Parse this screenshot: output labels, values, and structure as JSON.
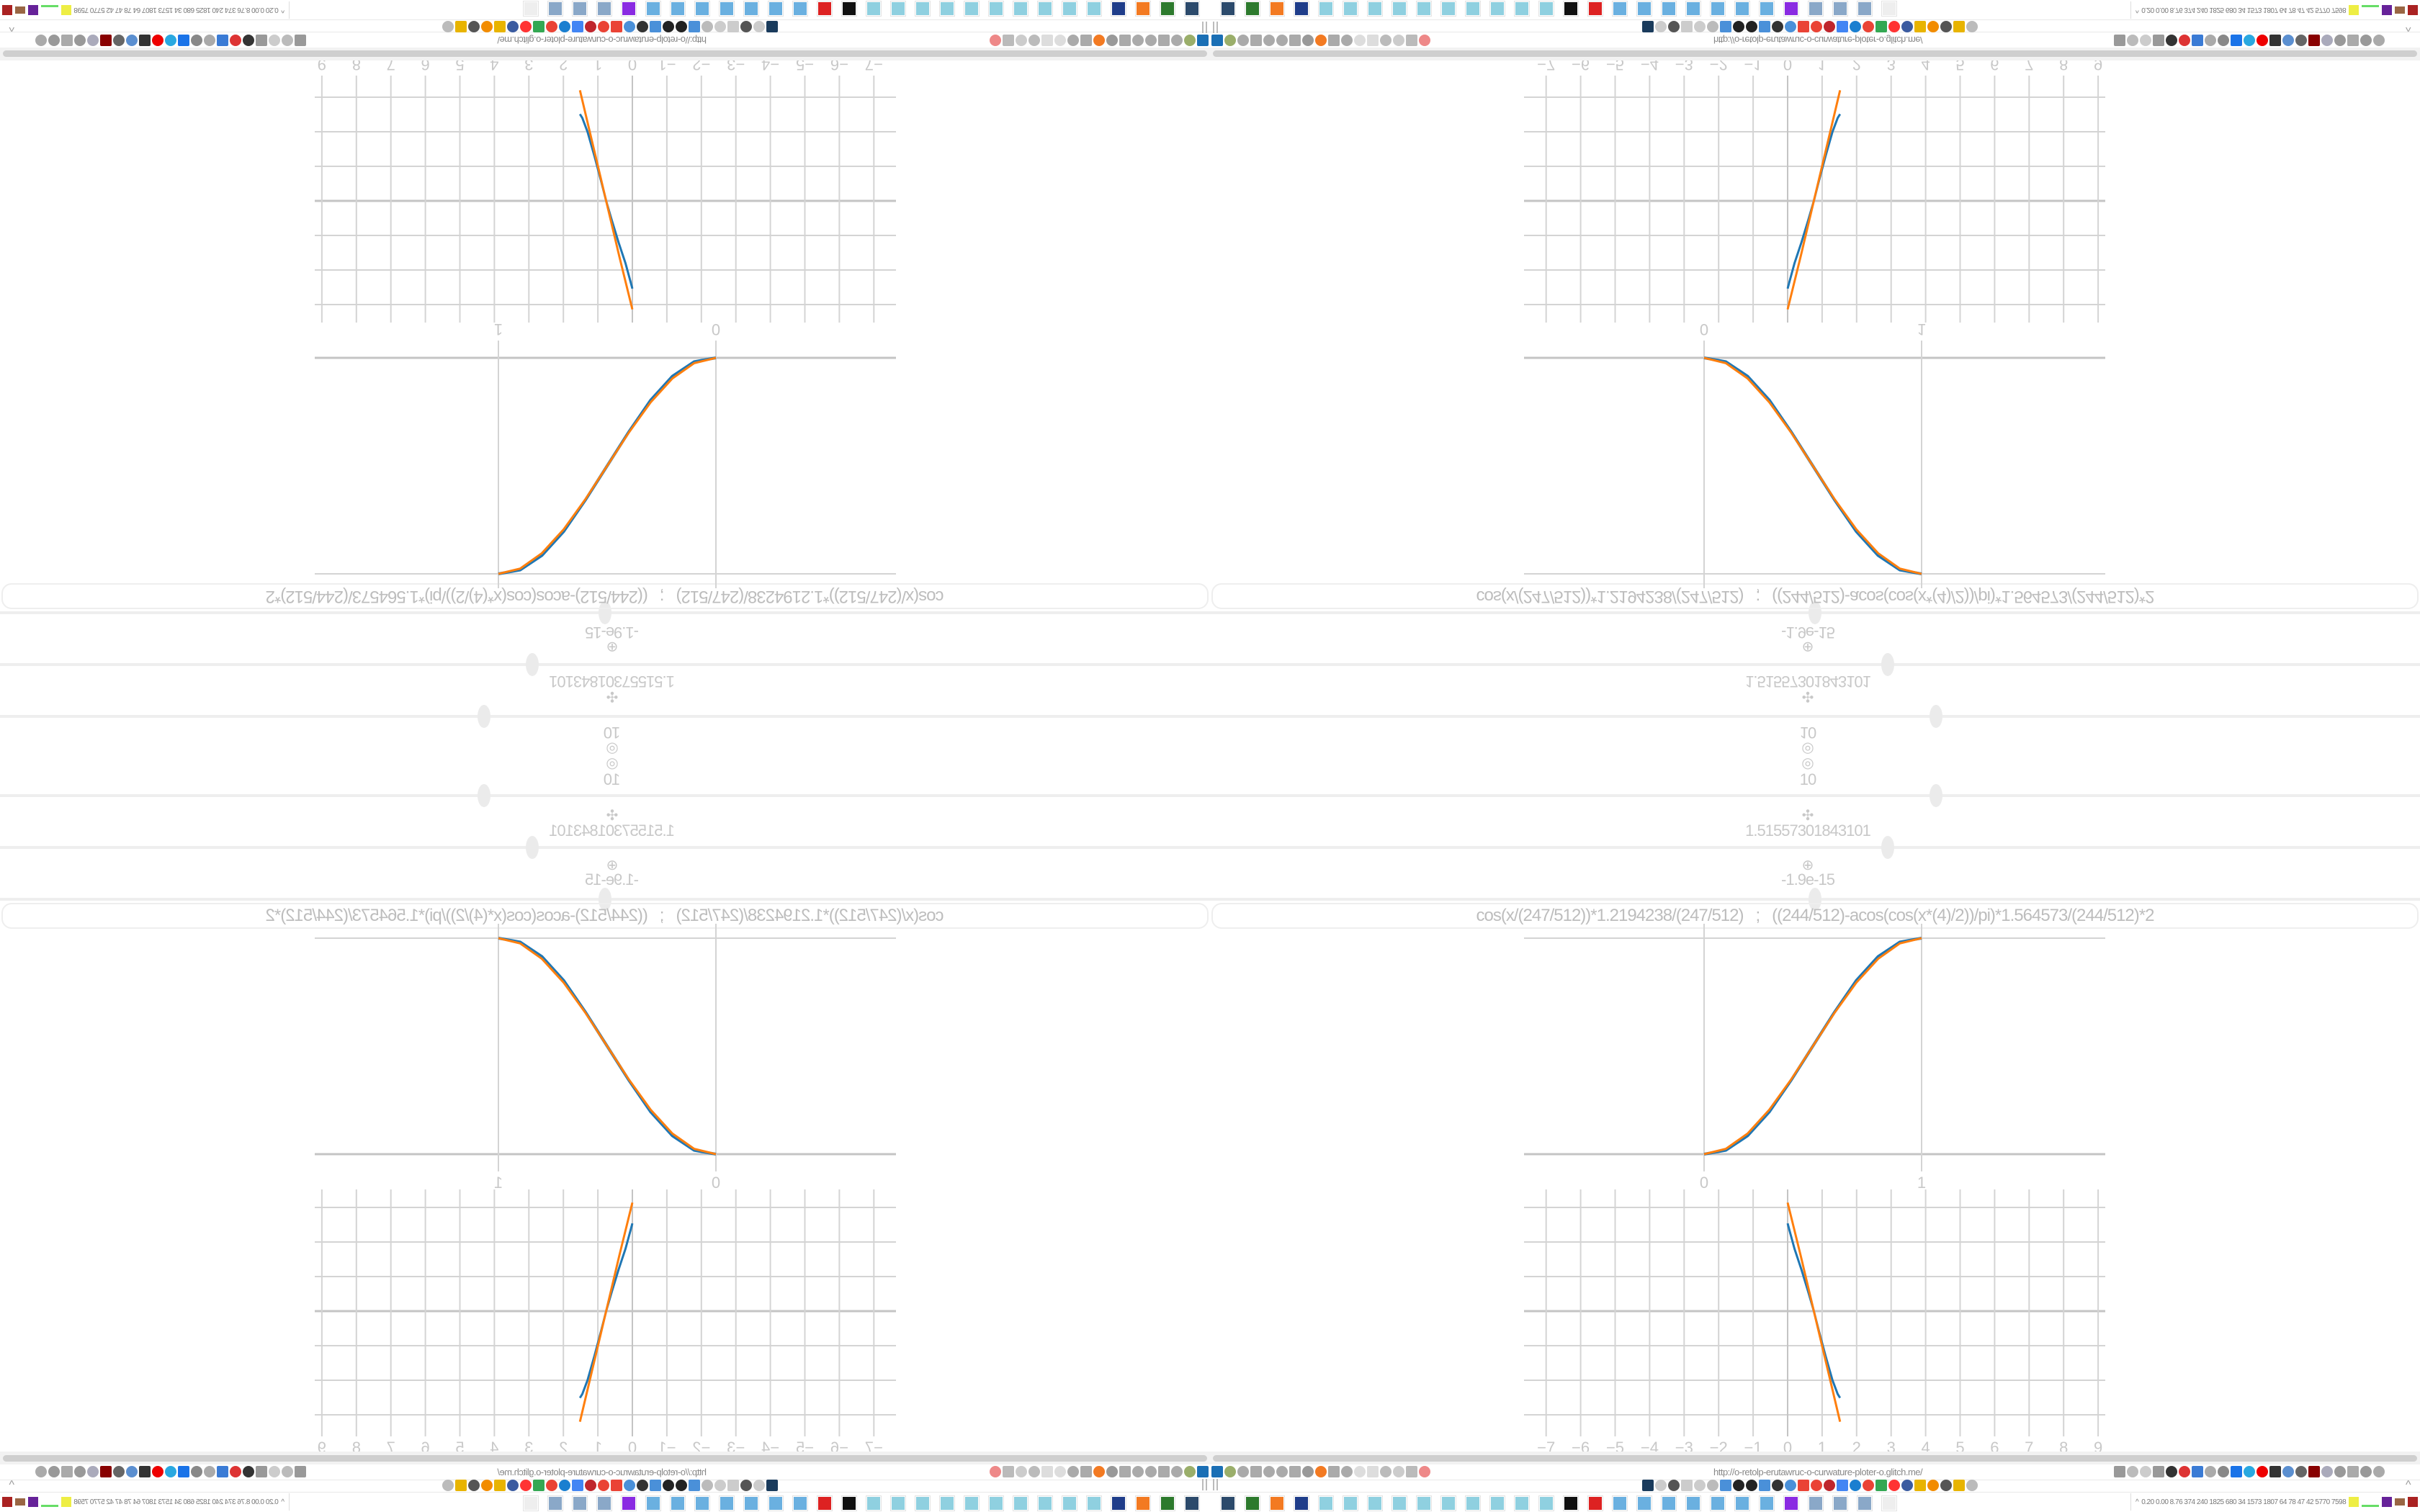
{
  "sliders": [
    {
      "value_text": "10",
      "glyph": "◎",
      "fraction": 0.6
    },
    {
      "glyph": "✣",
      "value_text": "1.51557301843101",
      "fraction": 0.56
    },
    {
      "glyph": "⊕",
      "value_text": "-1.9e-15",
      "fraction": 0.5
    }
  ],
  "formula": "cos(x/(247/512))*1.2194238/(247/512)   ;   ((244/512)-acos(cos(x*(4)/2))/pi)*1.564573/(244/512)*2",
  "colors": {
    "blue": "#1f77b4",
    "orange": "#ff7f0e",
    "grid": "#d0d0d0",
    "text": "#c8c8c8"
  },
  "chart_data": [
    {
      "type": "line",
      "x_ticks": [
        "0",
        "1"
      ],
      "xlim": [
        0,
        1
      ],
      "ylim": [
        0,
        1
      ],
      "grid": true,
      "series": [
        {
          "color": "#1f77b4",
          "x": [
            0,
            0.1,
            0.2,
            0.3,
            0.4,
            0.5,
            0.6,
            0.7,
            0.8,
            0.9,
            1
          ],
          "y": [
            0,
            0.018,
            0.085,
            0.196,
            0.342,
            0.5,
            0.658,
            0.804,
            0.915,
            0.982,
            1
          ]
        },
        {
          "color": "#ff7f0e",
          "x": [
            0,
            0.1,
            0.2,
            0.3,
            0.4,
            0.5,
            0.6,
            0.7,
            0.8,
            0.9,
            1
          ],
          "y": [
            0,
            0.0245,
            0.0955,
            0.2061,
            0.3455,
            0.5,
            0.6545,
            0.7939,
            0.9045,
            0.9755,
            1
          ]
        }
      ]
    },
    {
      "type": "line",
      "x_ticks": [
        "−7",
        "−6",
        "−5",
        "−4",
        "−3",
        "−2",
        "−1",
        "0",
        "1",
        "2",
        "3",
        "4",
        "5",
        "6",
        "7",
        "8",
        "9"
      ],
      "xlim": [
        -7,
        9
      ],
      "ylim": [
        -3.6,
        3.5
      ],
      "grid": true,
      "series": [
        {
          "color": "#1f77b4",
          "x": [
            0,
            0.05,
            0.2,
            0.4,
            0.6,
            0.76,
            0.9,
            1.1,
            1.3,
            1.45,
            1.52
          ],
          "y": [
            2.54,
            2.35,
            1.8,
            1.2,
            0.55,
            0,
            -0.55,
            -1.3,
            -2.0,
            -2.4,
            -2.51
          ]
        },
        {
          "color": "#ff7f0e",
          "x": [
            0,
            0.38,
            0.76,
            1.14,
            1.52
          ],
          "y": [
            3.14,
            1.6,
            0,
            -1.6,
            -3.2
          ]
        }
      ]
    }
  ],
  "browser": {
    "url": "http://o-retolp-erutawruc-o-curwature-ploter-o.glitch.me/",
    "toolbar_left_icons": [
      {
        "name": "filter-icon",
        "color": "#1a6fb5"
      },
      {
        "name": "power-icon",
        "color": "#9aae6a"
      },
      {
        "name": "globe-icon",
        "color": "#aaa"
      },
      {
        "name": "globe-icon",
        "color": "#aaa"
      },
      {
        "name": "headphones-icon",
        "color": "#aaa"
      },
      {
        "name": "headphones-icon",
        "color": "#aaa"
      },
      {
        "name": "globe-icon",
        "color": "#aaa"
      },
      {
        "name": "wrench-icon",
        "color": "#999"
      },
      {
        "name": "firefox-icon",
        "color": "#f37a22"
      },
      {
        "name": "gear-icon",
        "color": "#aaa"
      },
      {
        "name": "globe-icon",
        "color": "#aaa"
      },
      {
        "name": "dot-icon",
        "color": "#ddd"
      },
      {
        "name": "dot-icon",
        "color": "#ddd"
      },
      {
        "name": "folder-icon",
        "color": "#bbb"
      },
      {
        "name": "back-icon",
        "color": "#ccc"
      },
      {
        "name": "shield-icon",
        "color": "#bbb"
      },
      {
        "name": "blocked-icon",
        "color": "#e88"
      }
    ],
    "toolbar_right_icons": [
      {
        "name": "translate-icon",
        "color": "#999"
      },
      {
        "name": "star-icon",
        "color": "#bbb"
      },
      {
        "name": "forward-icon",
        "color": "#ccc"
      },
      {
        "name": "reload-icon",
        "color": "#999"
      },
      {
        "name": "download-icon",
        "color": "#333"
      },
      {
        "name": "pen-icon",
        "color": "#d33"
      },
      {
        "name": "translate-icon",
        "color": "#3a7bd5"
      },
      {
        "name": "shield-icon",
        "color": "#aaa"
      },
      {
        "name": "gear-icon",
        "color": "#888"
      },
      {
        "name": "plus-icon",
        "color": "#1a73e8"
      },
      {
        "name": "upload-icon",
        "color": "#29a8e0"
      },
      {
        "name": "record-icon",
        "color": "#e00"
      },
      {
        "name": "trash-icon",
        "color": "#333"
      },
      {
        "name": "network-icon",
        "color": "#5b8fd0"
      },
      {
        "name": "archive-icon",
        "color": "#666"
      },
      {
        "name": "ublock-icon",
        "color": "#800"
      },
      {
        "name": "privacy-icon",
        "color": "#aab"
      },
      {
        "name": "globe-icon",
        "color": "#999"
      },
      {
        "name": "puzzle-icon",
        "color": "#aaa"
      },
      {
        "name": "wrench-icon",
        "color": "#999"
      },
      {
        "name": "gear-icon",
        "color": "#aaa"
      }
    ],
    "bookmark_icons": [
      {
        "name": "bookmark-icon",
        "color": "#1a3b5c"
      },
      {
        "name": "bookmark-icon",
        "color": "#ccc"
      },
      {
        "name": "cc-icon",
        "color": "#555"
      },
      {
        "name": "bookmark-icon",
        "color": "#ccc"
      },
      {
        "name": "bookmark-icon",
        "color": "#ccc"
      },
      {
        "name": "bookmark-icon",
        "color": "#bbb"
      },
      {
        "name": "bookmark-icon",
        "color": "#4a90d9"
      },
      {
        "name": "wikipedia-icon",
        "color": "#222"
      },
      {
        "name": "bookmark-icon",
        "color": "#222"
      },
      {
        "name": "bookmark-icon",
        "color": "#4a90d9"
      },
      {
        "name": "bookmark-icon",
        "color": "#333"
      },
      {
        "name": "bookmark-icon",
        "color": "#4a90d9"
      },
      {
        "name": "google-icon",
        "color": "#ea4335"
      },
      {
        "name": "google-icon",
        "color": "#ea4335"
      },
      {
        "name": "bookmark-icon",
        "color": "#c0262d"
      },
      {
        "name": "google-icon",
        "color": "#4285f4"
      },
      {
        "name": "bookmark-icon",
        "color": "#1a7fd0"
      },
      {
        "name": "google-icon",
        "color": "#ea4335"
      },
      {
        "name": "google-icon",
        "color": "#34a853"
      },
      {
        "name": "yandex-icon",
        "color": "#f33"
      },
      {
        "name": "bookmark-icon",
        "color": "#3a5ba0"
      },
      {
        "name": "bookmark-icon",
        "color": "#e8b400"
      },
      {
        "name": "bookmark-icon",
        "color": "#f28c00"
      },
      {
        "name": "cc-icon",
        "color": "#555"
      },
      {
        "name": "bookmark-icon",
        "color": "#e8b400"
      },
      {
        "name": "hourglass-icon",
        "color": "#bbb"
      }
    ],
    "taskbar_icons": [
      {
        "name": "app-icon",
        "color": "#2c4a6b"
      },
      {
        "name": "app-icon",
        "color": "#2d7a2d"
      },
      {
        "name": "firefox-icon",
        "color": "#f37a22"
      },
      {
        "name": "save-icon",
        "color": "#1f3d8a"
      },
      {
        "name": "notepad-icon",
        "color": "#8fd0e0"
      },
      {
        "name": "notepad-icon",
        "color": "#8fd0e0"
      },
      {
        "name": "notepad-icon",
        "color": "#8fd0e0"
      },
      {
        "name": "notepad-icon",
        "color": "#8fd0e0"
      },
      {
        "name": "notepad-icon",
        "color": "#8fd0e0"
      },
      {
        "name": "notepad-icon",
        "color": "#8fd0e0"
      },
      {
        "name": "notepad-icon",
        "color": "#8fd0e0"
      },
      {
        "name": "notepad-icon",
        "color": "#8fd0e0"
      },
      {
        "name": "notepad-icon",
        "color": "#8fd0e0"
      },
      {
        "name": "notepad-icon",
        "color": "#8fd0e0"
      },
      {
        "name": "app-icon",
        "color": "#111"
      },
      {
        "name": "app-icon",
        "color": "#d22"
      },
      {
        "name": "calculator-icon",
        "color": "#6ab0e0"
      },
      {
        "name": "calculator-icon",
        "color": "#6ab0e0"
      },
      {
        "name": "calculator-icon",
        "color": "#6ab0e0"
      },
      {
        "name": "calculator-icon",
        "color": "#6ab0e0"
      },
      {
        "name": "calculator-icon",
        "color": "#6ab0e0"
      },
      {
        "name": "calculator-icon",
        "color": "#6ab0e0"
      },
      {
        "name": "calculator-icon",
        "color": "#6ab0e0"
      },
      {
        "name": "app-icon",
        "color": "#8a2be2"
      },
      {
        "name": "scroll-icon",
        "color": "#8aa8c8"
      },
      {
        "name": "scroll-icon",
        "color": "#8aa8c8"
      },
      {
        "name": "scroll-icon",
        "color": "#8aa8c8"
      },
      {
        "name": "app-icon",
        "color": "#eee"
      }
    ],
    "tray_text": "0.20 0.00 8.76 374 240 1825 680 34 1573 1807 64 78 47 42 5770 7598"
  }
}
